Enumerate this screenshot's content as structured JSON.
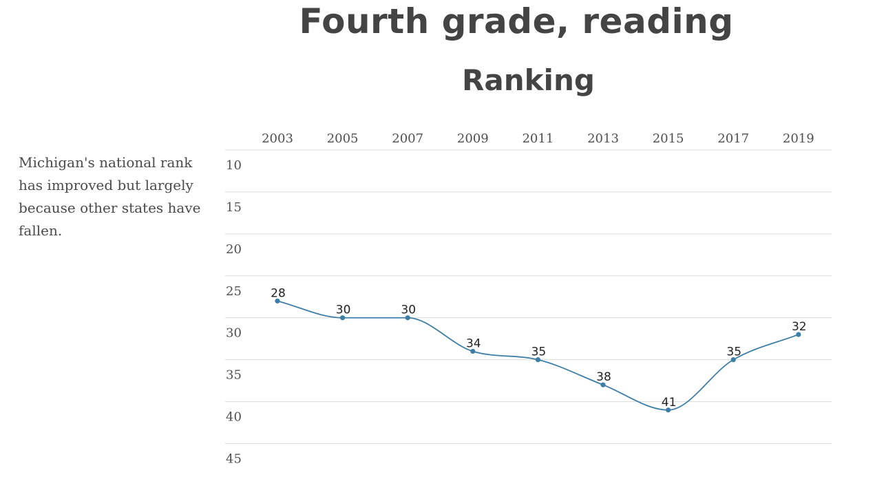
{
  "title": "Fourth grade, reading",
  "subtitle": "Ranking",
  "note": "Michigan's national rank has improved but largely because other states have fallen.",
  "colors": {
    "line": "#3d7ea6",
    "grid": "#d9d9d9",
    "text": "#4a4a4a"
  },
  "chart_data": {
    "type": "line",
    "title": "Fourth grade, reading",
    "subtitle": "Ranking",
    "categories": [
      "2003",
      "2005",
      "2007",
      "2009",
      "2011",
      "2013",
      "2015",
      "2017",
      "2019"
    ],
    "values": [
      28,
      30,
      30,
      34,
      35,
      38,
      41,
      35,
      32
    ],
    "yticks": [
      10,
      15,
      20,
      25,
      30,
      35,
      40,
      45
    ],
    "ylim": [
      45,
      10
    ],
    "y_reversed": true,
    "x_axis_position": "top",
    "grid": true,
    "data_labels": true,
    "legend": "none"
  }
}
